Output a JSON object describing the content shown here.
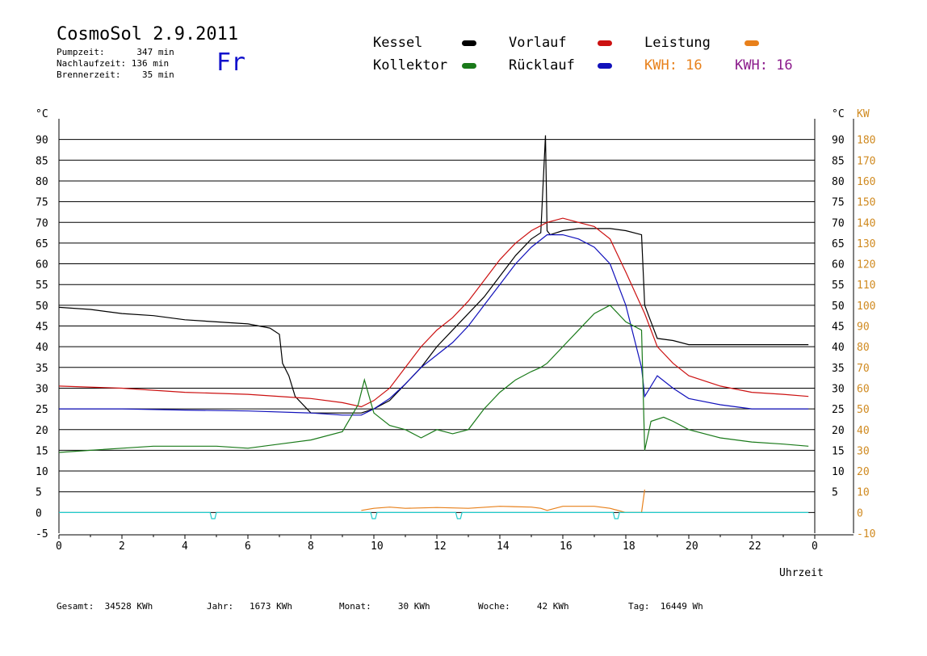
{
  "header": {
    "title": "CosmoSol 2.9.2011",
    "pumpzeit": "Pumpzeit:      347 min",
    "nachlaufzeit": "Nachlaufzeit: 136 min",
    "brennerzeit": "Brennerzeit:    35 min",
    "day": "Fr"
  },
  "legend": {
    "kessel": "Kessel",
    "kollektor": "Kollektor",
    "vorlauf": "Vorlauf",
    "ruecklauf": "Rücklauf",
    "leistung": "Leistung",
    "kwh1": "KWH: 16",
    "kwh2": "KWH: 16"
  },
  "colors": {
    "kessel": "#000000",
    "kollektor": "#1a7a1a",
    "vorlauf": "#cc1111",
    "ruecklauf": "#1111bb",
    "leistung": "#e8801a",
    "kwh_purple": "#8b1a8b",
    "cyan": "#22cccc",
    "kw_axis": "#d08a20"
  },
  "footer": {
    "gesamt": "Gesamt:  34528 KWh",
    "jahr": "Jahr:   1673 KWh",
    "monat": "Monat:     30 KWh",
    "woche": "Woche:     42 KWh",
    "tag": "Tag:  16449 Wh"
  },
  "chart_data": {
    "type": "line",
    "xlabel": "Uhrzeit",
    "ylabel_left": "°C",
    "ylabel_right_temp": "°C",
    "ylabel_right_power": "KW",
    "xlim": [
      0,
      24
    ],
    "ylim": [
      -5,
      95
    ],
    "x_ticks": [
      "0",
      "2",
      "4",
      "6",
      "8",
      "10",
      "12",
      "14",
      "16",
      "18",
      "20",
      "22",
      "0"
    ],
    "y_ticks": [
      "-5",
      "0",
      "5",
      "10",
      "15",
      "20",
      "25",
      "30",
      "35",
      "40",
      "45",
      "50",
      "55",
      "60",
      "65",
      "70",
      "75",
      "80",
      "85",
      "90"
    ],
    "y_ticks_right": [
      "5",
      "10",
      "15",
      "20",
      "25",
      "30",
      "35",
      "40",
      "45",
      "50",
      "55",
      "60",
      "65",
      "70",
      "75",
      "80",
      "85",
      "90"
    ],
    "kw_ticks": [
      "-10",
      "0",
      "10",
      "20",
      "30",
      "40",
      "50",
      "60",
      "70",
      "80",
      "90",
      "100",
      "110",
      "120",
      "130",
      "140",
      "150",
      "160",
      "170",
      "180"
    ],
    "series": [
      {
        "name": "Kessel",
        "color": "#000000",
        "x": [
          0,
          1,
          2,
          3,
          4,
          5,
          6,
          6.7,
          7.0,
          7.1,
          7.3,
          7.5,
          8.0,
          9.0,
          9.6,
          10.0,
          10.5,
          11,
          11.5,
          12,
          12.5,
          13,
          13.5,
          14,
          14.5,
          15,
          15.3,
          15.45,
          15.5,
          15.6,
          16,
          16.5,
          17,
          17.5,
          18,
          18.5,
          18.6,
          18.8,
          19.0,
          19.5,
          20.0,
          21,
          22,
          23,
          23.8
        ],
        "y": [
          49.5,
          49,
          48,
          47.5,
          46.5,
          46,
          45.5,
          44.5,
          43,
          36,
          33,
          28,
          24,
          24,
          24,
          25,
          27,
          31,
          35,
          40,
          44,
          48,
          52,
          57,
          62,
          66,
          67.5,
          91,
          68,
          67,
          68,
          68.5,
          68.5,
          68.5,
          68,
          67,
          50,
          46,
          42,
          41.5,
          40.5,
          40.5,
          40.5,
          40.5,
          40.5
        ]
      },
      {
        "name": "Vorlauf",
        "color": "#cc1111",
        "x": [
          0,
          2,
          4,
          6,
          8,
          9,
          9.6,
          10.0,
          10.5,
          11,
          11.5,
          12,
          12.5,
          13,
          13.5,
          14,
          14.5,
          15,
          15.5,
          16,
          16.5,
          17,
          17.5,
          18.0,
          18.3,
          18.6,
          19.0,
          19.5,
          20,
          21,
          22,
          23,
          23.8
        ],
        "y": [
          30.5,
          30,
          29,
          28.5,
          27.5,
          26.5,
          25.5,
          27,
          30,
          35,
          40,
          44,
          47,
          51,
          56,
          61,
          65,
          68,
          70,
          71,
          70,
          69,
          66,
          58,
          53,
          48,
          40,
          36,
          33,
          30.5,
          29,
          28.5,
          28
        ]
      },
      {
        "name": "Rücklauf",
        "color": "#1111bb",
        "x": [
          0,
          2,
          4,
          6,
          8,
          9,
          9.6,
          10.0,
          10.5,
          11,
          11.5,
          12,
          12.5,
          13,
          13.5,
          14,
          14.5,
          15,
          15.5,
          16,
          16.5,
          17,
          17.5,
          18.0,
          18.5,
          18.6,
          19.0,
          19.5,
          20,
          21,
          22,
          23,
          23.8
        ],
        "y": [
          25,
          25,
          24.7,
          24.5,
          24,
          23.5,
          23.5,
          25,
          27.5,
          31,
          35,
          38,
          41,
          45,
          50,
          55,
          60,
          64,
          67,
          67,
          66,
          64,
          60,
          50,
          35,
          28,
          33,
          30,
          27.5,
          26,
          25,
          25,
          25
        ]
      },
      {
        "name": "Kollektor",
        "color": "#1a7a1a",
        "x": [
          0,
          1,
          2,
          3,
          4,
          5,
          6,
          7,
          8,
          9.0,
          9.5,
          9.7,
          10.0,
          10.5,
          11,
          11.5,
          12,
          12.5,
          13,
          13.5,
          14,
          14.5,
          15,
          15.3,
          15.5,
          16,
          16.5,
          17,
          17.5,
          18,
          18.5,
          18.6,
          18.8,
          19.2,
          19.5,
          20,
          21,
          22,
          23,
          23.8
        ],
        "y": [
          14.5,
          15,
          15.5,
          16,
          16,
          16,
          15.5,
          16.5,
          17.5,
          19.5,
          26,
          32,
          24,
          21,
          20,
          18,
          20,
          19,
          20,
          25,
          29,
          32,
          34,
          35,
          36,
          40,
          44,
          48,
          50,
          46,
          44,
          15,
          22,
          23,
          22,
          20,
          18,
          17,
          16.5,
          16
        ]
      },
      {
        "name": "Leistung",
        "color": "#e8801a",
        "x": [
          9.6,
          10.0,
          10.5,
          11,
          12,
          13,
          14,
          15,
          15.3,
          15.5,
          16,
          16.5,
          17,
          17.5,
          18,
          18.5,
          18.6
        ],
        "y": [
          0.5,
          1.0,
          1.3,
          1.0,
          1.2,
          1.0,
          1.5,
          1.3,
          1.0,
          0.5,
          1.5,
          1.5,
          1.5,
          1.0,
          0,
          0,
          5.5
        ]
      },
      {
        "name": "Kollektorpumpe",
        "color": "#22cccc",
        "x": [
          0,
          4.8,
          4.85,
          4.95,
          5.0,
          9.9,
          9.95,
          10.05,
          10.1,
          12.6,
          12.65,
          12.75,
          12.8,
          17.6,
          17.65,
          17.75,
          17.8,
          23.8
        ],
        "y": [
          0,
          0,
          -1.5,
          -1.5,
          0,
          0,
          -1.5,
          -1.5,
          0,
          0,
          -1.5,
          -1.5,
          0,
          0,
          -1.5,
          -1.5,
          0,
          0
        ]
      }
    ]
  }
}
